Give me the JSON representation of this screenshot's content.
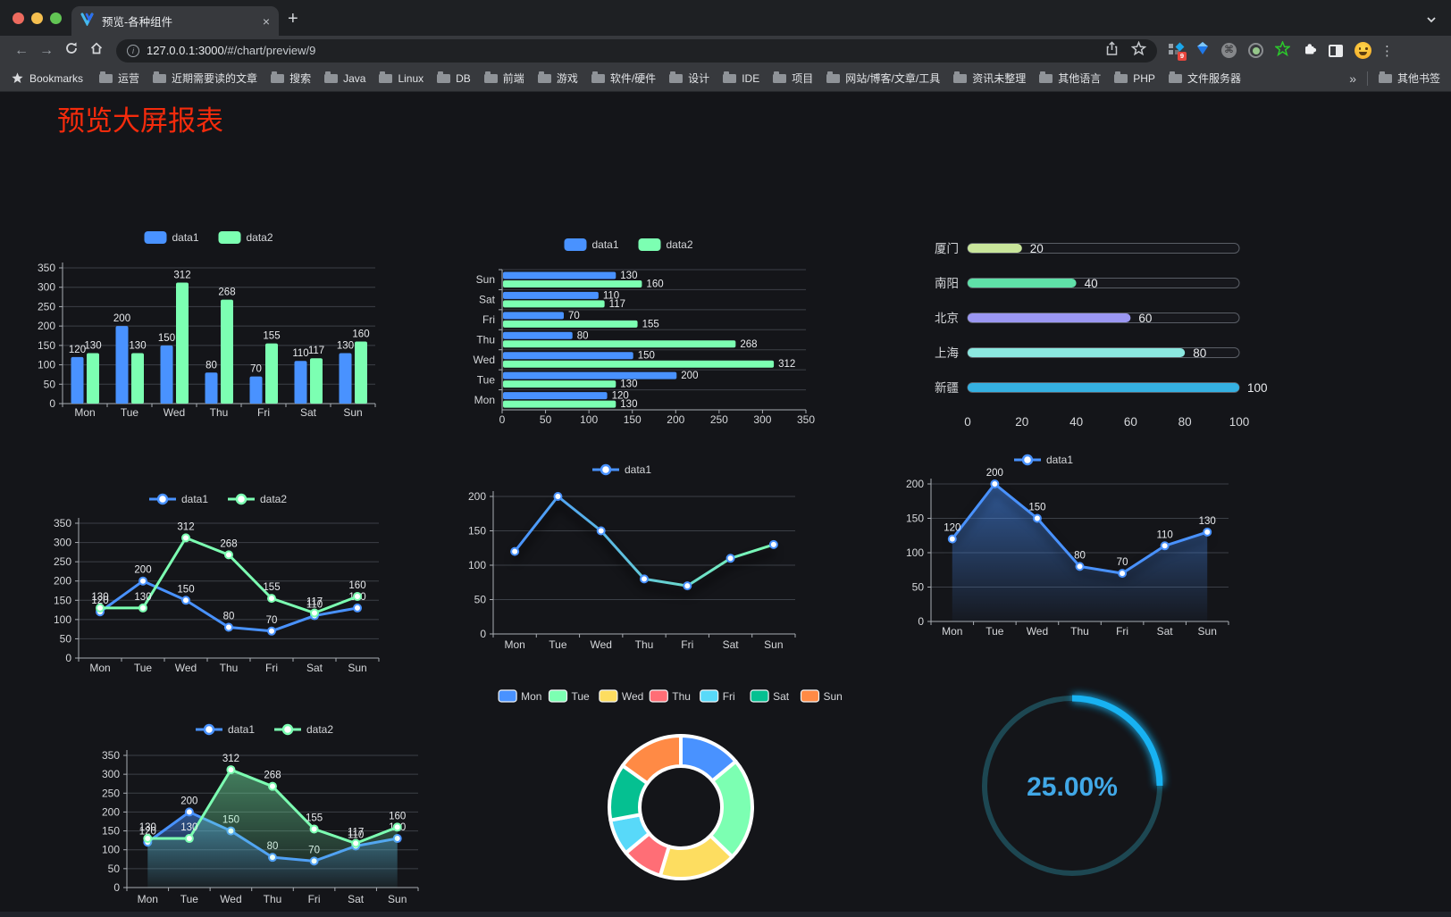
{
  "browser": {
    "tab": {
      "title": "预览-各种组件"
    },
    "glyphs": {
      "close": "×",
      "new_tab": "+",
      "back": "←",
      "forward": "→",
      "menu": "⋮",
      "command": "⌘",
      "overflow": "»",
      "info": "i",
      "badge": "9"
    },
    "toolbar": {
      "url_host": "127.0.0.1:3000",
      "url_path": "/#/chart/preview/9"
    },
    "bookmarks": {
      "label": "Bookmarks",
      "items": [
        "运营",
        "近期需要读的文章",
        "搜索",
        "Java",
        "Linux",
        "DB",
        "前端",
        "游戏",
        "软件/硬件",
        "设计",
        "IDE",
        "项目",
        "网站/博客/文章/工具",
        "资讯未整理",
        "其他语言",
        "PHP",
        "文件服务器"
      ],
      "other_label": "其他书签"
    }
  },
  "page": {
    "title": "预览大屏报表",
    "title_color": "#f42b0c",
    "background": "#141519"
  },
  "palette": {
    "grid": "#3c4047",
    "axis": "#a9adb3",
    "label": "#d5d7da",
    "value_label": "#e9ebee",
    "blue": "#4992ff",
    "green": "#7cffb2"
  },
  "chart_data": [
    {
      "id": "bar-grouped",
      "type": "bar",
      "categories": [
        "Mon",
        "Tue",
        "Wed",
        "Thu",
        "Fri",
        "Sat",
        "Sun"
      ],
      "series": [
        {
          "name": "data1",
          "color": "#4992ff",
          "values": [
            120,
            200,
            150,
            80,
            70,
            110,
            130
          ]
        },
        {
          "name": "data2",
          "color": "#7cffb2",
          "values": [
            130,
            130,
            312,
            268,
            155,
            117,
            160
          ]
        }
      ],
      "ylim": [
        0,
        350
      ],
      "ytick_step": 50,
      "legend_position": "top",
      "grid": true,
      "labels": true
    },
    {
      "id": "bar-horizontal",
      "type": "bar",
      "orientation": "horizontal",
      "categories": [
        "Sun",
        "Sat",
        "Fri",
        "Thu",
        "Wed",
        "Tue",
        "Mon"
      ],
      "series": [
        {
          "name": "data1",
          "color": "#4992ff",
          "values": [
            130,
            110,
            70,
            80,
            150,
            200,
            120
          ]
        },
        {
          "name": "data2",
          "color": "#7cffb2",
          "values": [
            160,
            117,
            155,
            268,
            312,
            130,
            130
          ]
        }
      ],
      "xlim": [
        0,
        350
      ],
      "xtick_step": 50,
      "legend_position": "top",
      "grid": true,
      "labels": true
    },
    {
      "id": "progress",
      "type": "bar",
      "subtype": "progress-list",
      "items": [
        {
          "label": "厦门",
          "value": 20,
          "color": "#c9e59b"
        },
        {
          "label": "南阳",
          "value": 40,
          "color": "#5fe0a8"
        },
        {
          "label": "北京",
          "value": 60,
          "color": "#9b97f2"
        },
        {
          "label": "上海",
          "value": 80,
          "color": "#8ce8e0"
        },
        {
          "label": "新疆",
          "value": 100,
          "color": "#35b1e2"
        }
      ],
      "xlim": [
        0,
        100
      ],
      "xtick_step": 20
    },
    {
      "id": "line-two",
      "type": "line",
      "categories": [
        "Mon",
        "Tue",
        "Wed",
        "Thu",
        "Fri",
        "Sat",
        "Sun"
      ],
      "series": [
        {
          "name": "data1",
          "color": "#4992ff",
          "values": [
            120,
            200,
            150,
            80,
            70,
            110,
            130
          ]
        },
        {
          "name": "data2",
          "color": "#7cffb2",
          "values": [
            130,
            130,
            312,
            268,
            155,
            117,
            160
          ]
        }
      ],
      "ylim": [
        0,
        350
      ],
      "ytick_step": 50,
      "legend_position": "top",
      "grid": true,
      "labels": true
    },
    {
      "id": "line-gradient",
      "type": "line",
      "categories": [
        "Mon",
        "Tue",
        "Wed",
        "Thu",
        "Fri",
        "Sat",
        "Sun"
      ],
      "series": [
        {
          "name": "data1",
          "gradient": [
            "#4992ff",
            "#7cffb2"
          ],
          "color": "#4992ff",
          "values": [
            120,
            200,
            150,
            80,
            70,
            110,
            130
          ]
        }
      ],
      "ylim": [
        0,
        200
      ],
      "ytick_step": 50,
      "legend_position": "top",
      "grid": true,
      "labels": false,
      "shadow": true
    },
    {
      "id": "line-area",
      "type": "area",
      "categories": [
        "Mon",
        "Tue",
        "Wed",
        "Thu",
        "Fri",
        "Sat",
        "Sun"
      ],
      "series": [
        {
          "name": "data1",
          "color": "#4992ff",
          "values": [
            120,
            200,
            150,
            80,
            70,
            110,
            130
          ]
        }
      ],
      "ylim": [
        0,
        200
      ],
      "ytick_step": 50,
      "legend_position": "top",
      "grid": true,
      "labels": true
    },
    {
      "id": "line-area-two",
      "type": "area",
      "categories": [
        "Mon",
        "Tue",
        "Wed",
        "Thu",
        "Fri",
        "Sat",
        "Sun"
      ],
      "series": [
        {
          "name": "data1",
          "color": "#4992ff",
          "values": [
            120,
            200,
            150,
            80,
            70,
            110,
            130
          ]
        },
        {
          "name": "data2",
          "color": "#7cffb2",
          "values": [
            130,
            130,
            312,
            268,
            155,
            117,
            160
          ]
        }
      ],
      "ylim": [
        0,
        350
      ],
      "ytick_step": 50,
      "legend_position": "top",
      "grid": true,
      "labels": true
    },
    {
      "id": "pie",
      "type": "pie",
      "subtype": "doughnut",
      "labels": [
        "Mon",
        "Tue",
        "Wed",
        "Thu",
        "Fri",
        "Sat",
        "Sun"
      ],
      "values": [
        120,
        200,
        150,
        80,
        70,
        110,
        130
      ],
      "colors": [
        "#4992ff",
        "#7cffb2",
        "#fddd60",
        "#ff6e76",
        "#58d9f9",
        "#05c091",
        "#ff8a45"
      ],
      "legend_position": "top"
    },
    {
      "id": "gauge",
      "type": "gauge",
      "value": 25,
      "max": 100,
      "label": "25.00%",
      "bar_color": "#18b2f2",
      "track_color": "#1d4752",
      "text_color": "#41a8e7"
    }
  ]
}
